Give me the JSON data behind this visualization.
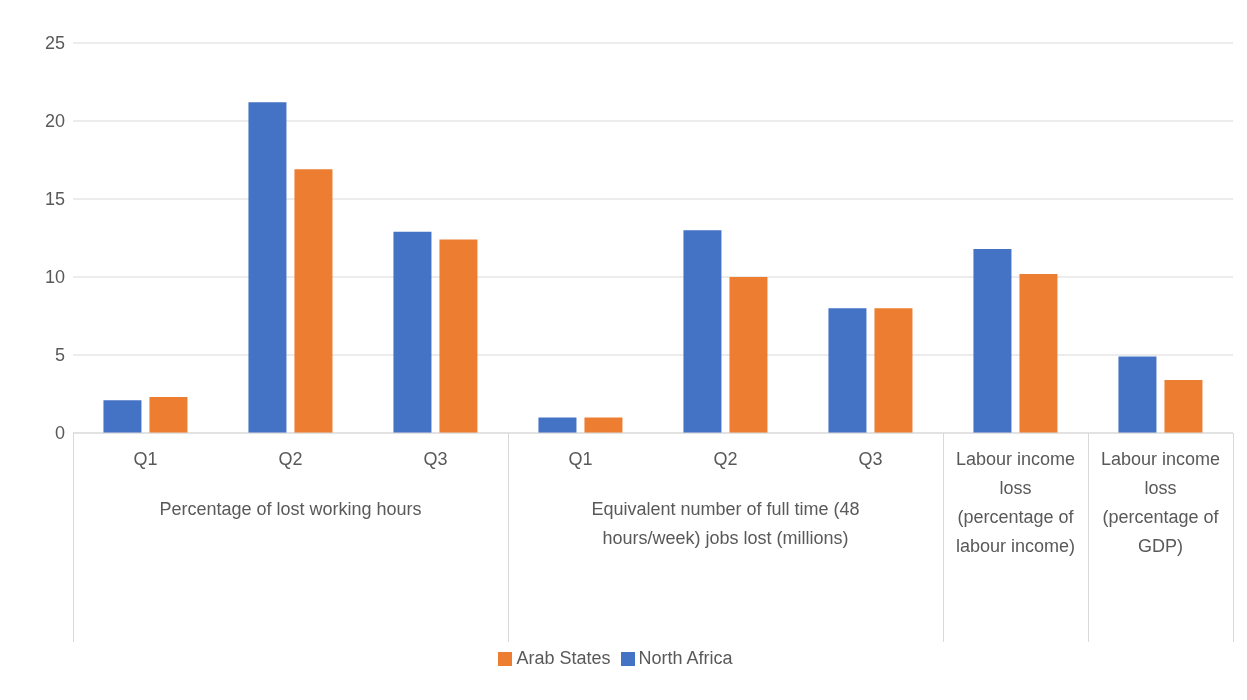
{
  "chart_data": {
    "type": "bar",
    "categories": [
      "Q1",
      "Q2",
      "Q3",
      "Q1",
      "Q2",
      "Q3",
      "Labour income loss (percentage of labour income)",
      "Labour income loss (percentage of GDP)"
    ],
    "series": [
      {
        "name": "North Africa",
        "color": "#4472c4",
        "values": [
          2.1,
          21.2,
          12.9,
          1.0,
          13.0,
          8.0,
          11.8,
          4.9
        ]
      },
      {
        "name": "Arab States",
        "color": "#ed7d31",
        "values": [
          2.3,
          16.9,
          12.4,
          1.0,
          10.0,
          8.0,
          10.2,
          3.4
        ]
      }
    ],
    "annotations": [
      "Percentage of lost working hours",
      "Equivalent number of full time (48 hours/week) jobs lost (millions)"
    ],
    "ylim": [
      0,
      25
    ],
    "yticks": [
      0,
      5,
      10,
      15,
      20,
      25
    ],
    "grid": "y",
    "legend": "bottom"
  }
}
